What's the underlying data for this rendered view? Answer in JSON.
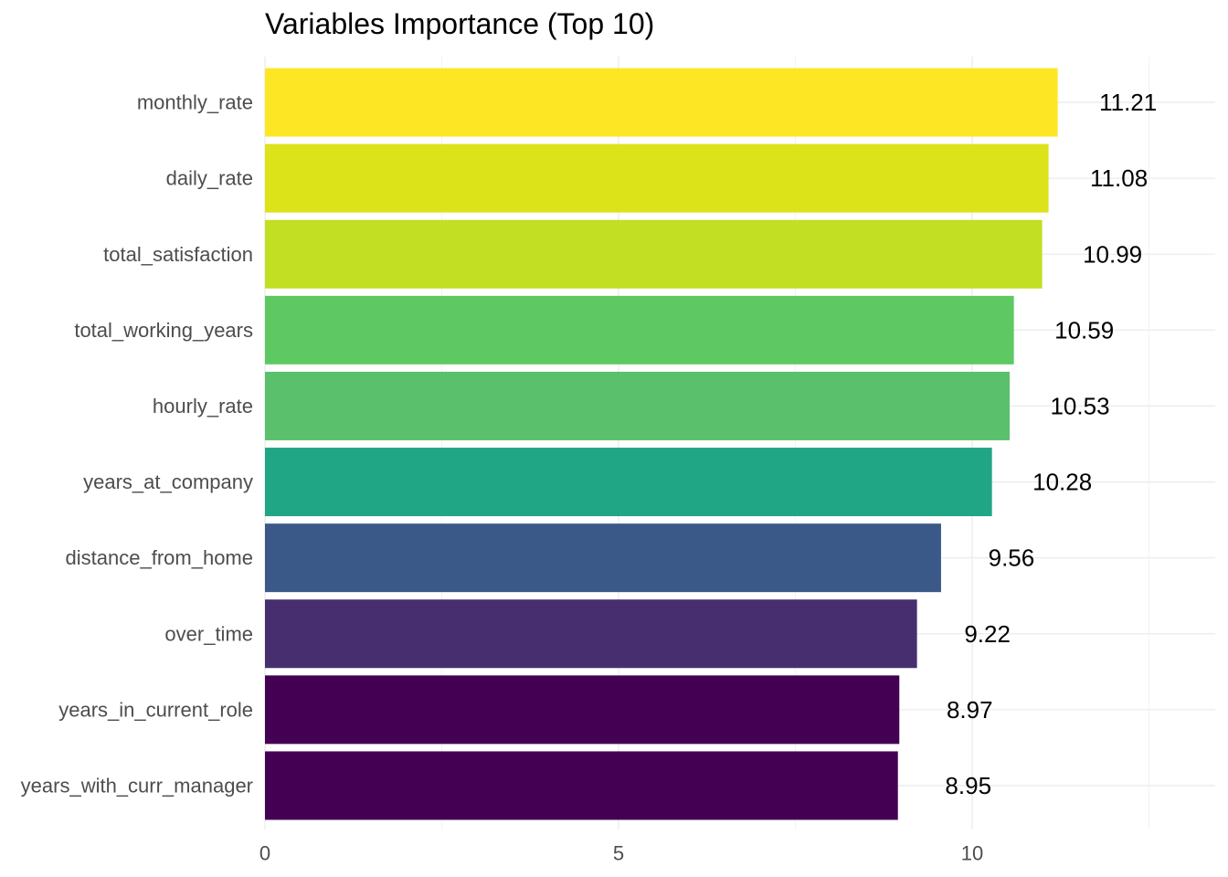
{
  "chart_data": {
    "type": "bar",
    "orientation": "horizontal",
    "title": "Variables Importance (Top 10)",
    "xlabel": "",
    "ylabel": "",
    "categories": [
      "monthly_rate",
      "daily_rate",
      "total_satisfaction",
      "total_working_years",
      "hourly_rate",
      "years_at_company",
      "distance_from_home",
      "over_time",
      "years_in_current_role",
      "years_with_curr_manager"
    ],
    "values": [
      11.21,
      11.08,
      10.99,
      10.59,
      10.53,
      10.28,
      9.56,
      9.22,
      8.97,
      8.95
    ],
    "value_labels": [
      "11.21",
      "11.08",
      "10.99",
      "10.59",
      "10.53",
      "10.28",
      "9.56",
      "9.22",
      "8.97",
      "8.95"
    ],
    "colors": [
      "#fde725",
      "#dce319",
      "#c2df23",
      "#5ec962",
      "#5ac06b",
      "#21a685",
      "#3b5988",
      "#472f6f",
      "#440154",
      "#440154"
    ],
    "x_ticks": [
      0,
      5,
      10
    ],
    "x_tick_labels": [
      "0",
      "5",
      "10"
    ],
    "xlim": [
      0,
      12.5
    ],
    "grid": true,
    "legend": "none"
  }
}
